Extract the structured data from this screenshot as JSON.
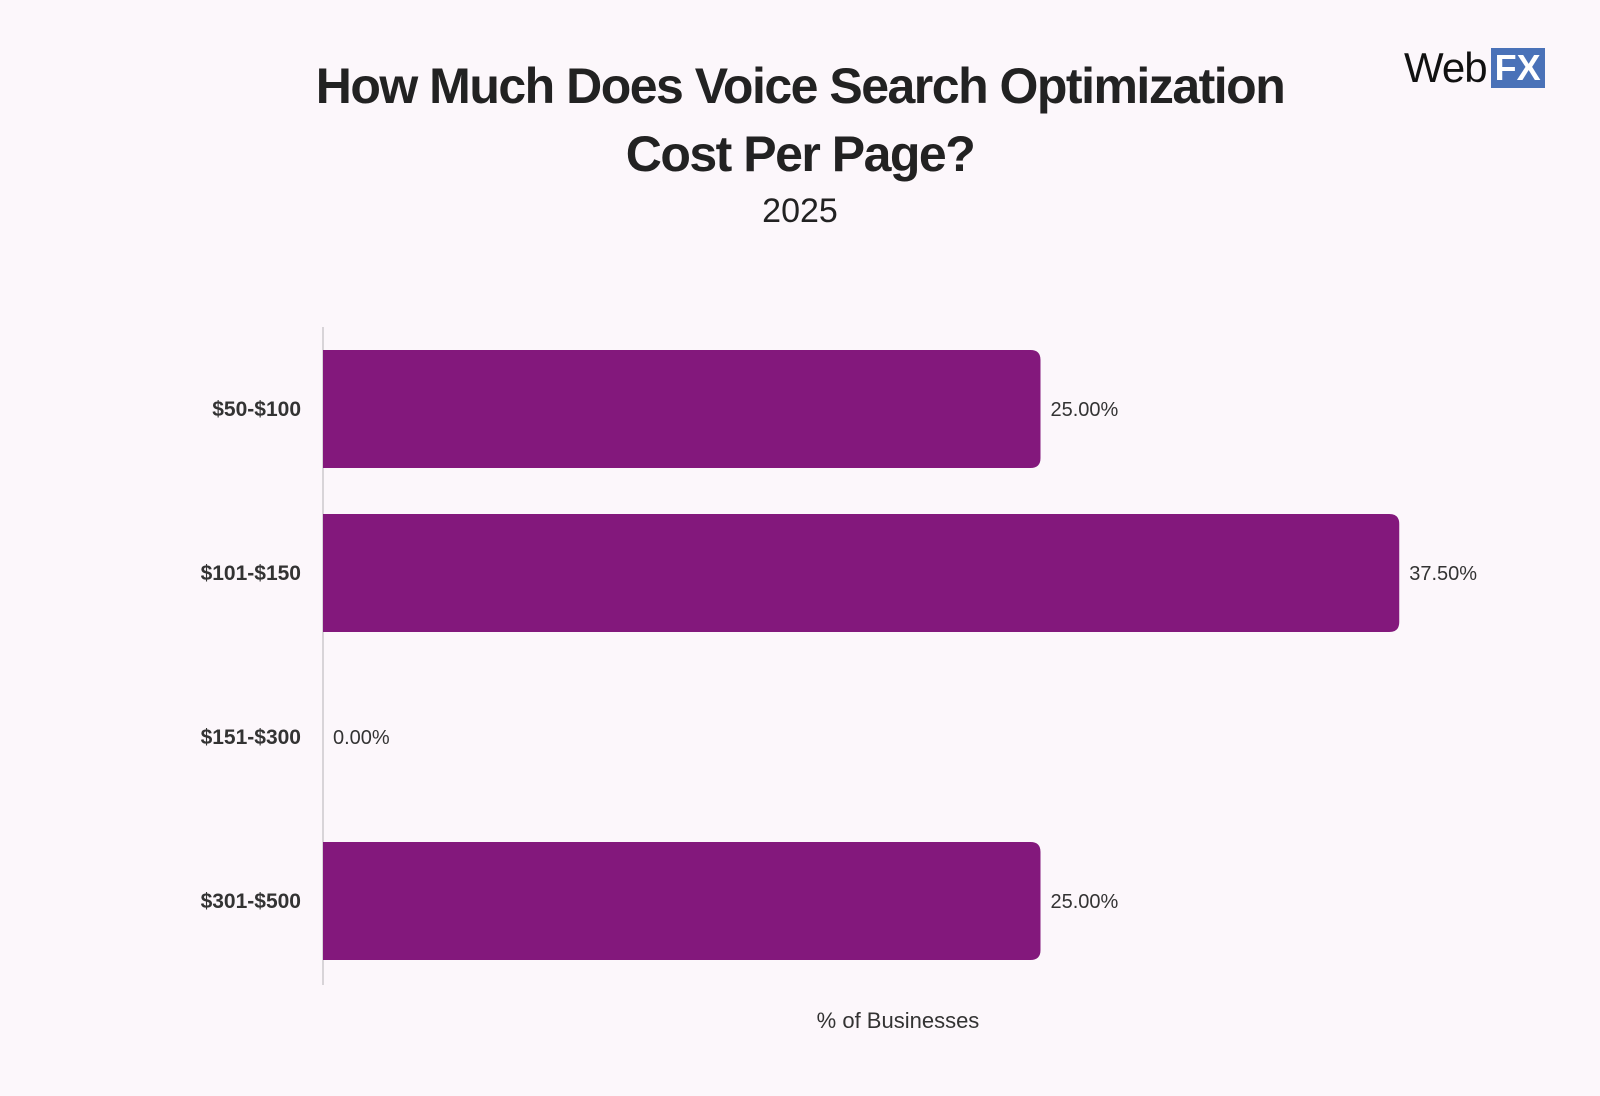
{
  "logo": {
    "web": "Web",
    "fx": "FX"
  },
  "chart_data": {
    "type": "bar",
    "orientation": "horizontal",
    "title": "How Much Does Voice Search Optimization Cost Per Page?",
    "title_lines": [
      "How Much Does Voice Search Optimization",
      "Cost Per Page?"
    ],
    "subtitle": "2025",
    "categories": [
      "$50-$100",
      "$101-$150",
      "$151-$300",
      "$301-$500"
    ],
    "values": [
      25.0,
      37.5,
      0.0,
      25.0
    ],
    "value_labels": [
      "25.00%",
      "37.50%",
      "0.00%",
      "25.00%"
    ],
    "xlabel": "% of Businesses",
    "ylabel": "",
    "xlim": [
      0,
      50
    ],
    "grid": false,
    "bar_color": "#83187c"
  }
}
